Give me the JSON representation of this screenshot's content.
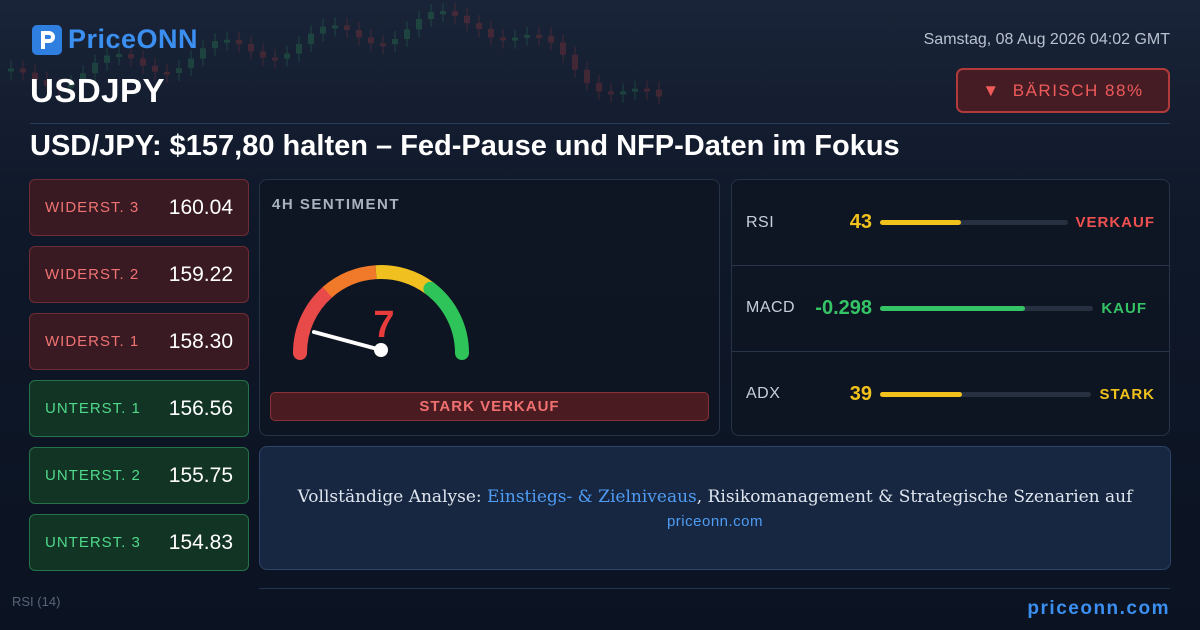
{
  "brand": {
    "name": "PriceONN",
    "logo_letter": "P"
  },
  "datetime": "Samstag, 08 Aug 2026 04:02 GMT",
  "symbol": "USDJPY",
  "signal": {
    "arrow": "▼",
    "label": "BÄRISCH 88%",
    "color": "#ef5a5a"
  },
  "headline": "USD/JPY: $157,80 halten – Fed-Pause und NFP-Daten im Fokus",
  "levels": [
    {
      "label": "WIDERST. 3",
      "value": "160.04",
      "kind": "resistance"
    },
    {
      "label": "WIDERST. 2",
      "value": "159.22",
      "kind": "resistance"
    },
    {
      "label": "WIDERST. 1",
      "value": "158.30",
      "kind": "resistance"
    },
    {
      "label": "UNTERST. 1",
      "value": "156.56",
      "kind": "support"
    },
    {
      "label": "UNTERST. 2",
      "value": "155.75",
      "kind": "support"
    },
    {
      "label": "UNTERST. 3",
      "value": "154.83",
      "kind": "support"
    }
  ],
  "sentiment": {
    "title": "4H SENTIMENT",
    "score": "7",
    "score_fraction": 0.07,
    "label": "STARK VERKAUF",
    "gauge_colors": [
      "#e84a4a",
      "#f07a2a",
      "#f0c020",
      "#2ec45a"
    ]
  },
  "indicators": [
    {
      "name": "RSI",
      "value": "43",
      "value_color": "#f2c21c",
      "fill_fraction": 0.43,
      "fill_color": "#f2c21c",
      "signal": "VERKAUF",
      "signal_color": "#ef5050"
    },
    {
      "name": "MACD",
      "value": "-0.298",
      "value_color": "#34c466",
      "fill_fraction": 0.68,
      "fill_color": "#34c466",
      "signal": "KAUF",
      "signal_color": "#34c466"
    },
    {
      "name": "ADX",
      "value": "39",
      "value_color": "#f2c21c",
      "fill_fraction": 0.39,
      "fill_color": "#f2c21c",
      "signal": "STARK",
      "signal_color": "#f2c21c"
    }
  ],
  "cta": {
    "prefix": "Vollständige Analyse: ",
    "link_text": "Einstiegs- & Zielniveaus",
    "suffix": ", Risikomanagement & Strategische Szenarien auf",
    "domain": "priceonn.com"
  },
  "footer_brand": "priceonn.com",
  "background_label": "RSI (14)"
}
